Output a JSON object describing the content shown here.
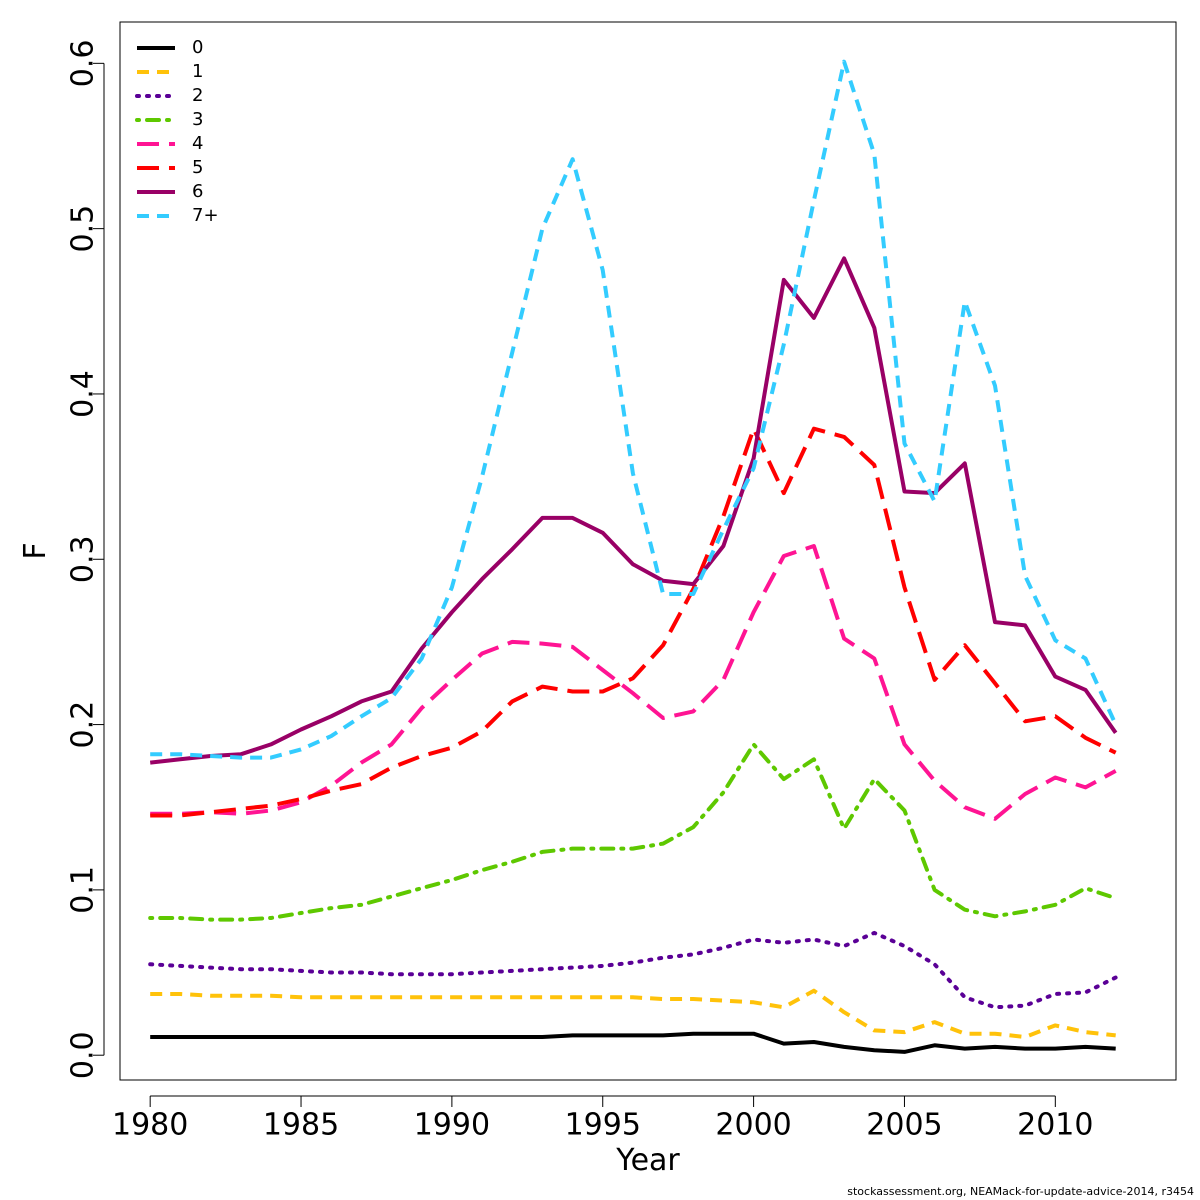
{
  "chart_data": {
    "type": "line",
    "xlabel": "Year",
    "ylabel": "F",
    "xlim": [
      1979,
      2014
    ],
    "ylim": [
      -0.015,
      0.625
    ],
    "xticks": [
      1980,
      1985,
      1990,
      1995,
      2000,
      2005,
      2010
    ],
    "yticks": [
      0.0,
      0.1,
      0.2,
      0.3,
      0.4,
      0.5,
      0.6
    ],
    "ytick_labels": [
      "0.0",
      "0.1",
      "0.2",
      "0.3",
      "0.4",
      "0.5",
      "0.6"
    ],
    "grid": false,
    "legend_position": "top-left",
    "x": [
      1980,
      1981,
      1982,
      1983,
      1984,
      1985,
      1986,
      1987,
      1988,
      1989,
      1990,
      1991,
      1992,
      1993,
      1994,
      1995,
      1996,
      1997,
      1998,
      1999,
      2000,
      2001,
      2002,
      2003,
      2004,
      2005,
      2006,
      2007,
      2008,
      2009,
      2010,
      2011,
      2012
    ],
    "series": [
      {
        "name": "0",
        "color": "#000000",
        "dash": "solid",
        "values": [
          0.011,
          0.011,
          0.011,
          0.011,
          0.011,
          0.011,
          0.011,
          0.011,
          0.011,
          0.011,
          0.011,
          0.011,
          0.011,
          0.011,
          0.012,
          0.012,
          0.012,
          0.012,
          0.013,
          0.013,
          0.013,
          0.007,
          0.008,
          0.005,
          0.003,
          0.002,
          0.006,
          0.004,
          0.005,
          0.004,
          0.004,
          0.005,
          0.004
        ]
      },
      {
        "name": "1",
        "color": "#FFC20A",
        "dash": "dashed",
        "values": [
          0.037,
          0.037,
          0.036,
          0.036,
          0.036,
          0.035,
          0.035,
          0.035,
          0.035,
          0.035,
          0.035,
          0.035,
          0.035,
          0.035,
          0.035,
          0.035,
          0.035,
          0.034,
          0.034,
          0.033,
          0.032,
          0.029,
          0.039,
          0.026,
          0.015,
          0.014,
          0.02,
          0.013,
          0.013,
          0.011,
          0.018,
          0.014,
          0.012
        ]
      },
      {
        "name": "2",
        "color": "#5A0096",
        "dash": "dotted",
        "values": [
          0.055,
          0.054,
          0.053,
          0.052,
          0.052,
          0.051,
          0.05,
          0.05,
          0.049,
          0.049,
          0.049,
          0.05,
          0.051,
          0.052,
          0.053,
          0.054,
          0.056,
          0.059,
          0.061,
          0.065,
          0.07,
          0.068,
          0.07,
          0.066,
          0.074,
          0.066,
          0.055,
          0.035,
          0.029,
          0.03,
          0.037,
          0.038,
          0.047
        ]
      },
      {
        "name": "3",
        "color": "#5EC800",
        "dash": "dotdash",
        "values": [
          0.083,
          0.083,
          0.082,
          0.082,
          0.083,
          0.086,
          0.089,
          0.091,
          0.096,
          0.101,
          0.106,
          0.112,
          0.117,
          0.123,
          0.125,
          0.125,
          0.125,
          0.128,
          0.138,
          0.159,
          0.188,
          0.167,
          0.179,
          0.137,
          0.167,
          0.148,
          0.1,
          0.088,
          0.084,
          0.087,
          0.091,
          0.101,
          0.095
        ]
      },
      {
        "name": "4",
        "color": "#FF1493",
        "dash": "longdash",
        "values": [
          0.146,
          0.146,
          0.147,
          0.146,
          0.148,
          0.153,
          0.163,
          0.177,
          0.188,
          0.21,
          0.227,
          0.243,
          0.25,
          0.249,
          0.247,
          0.233,
          0.219,
          0.204,
          0.208,
          0.227,
          0.268,
          0.302,
          0.308,
          0.252,
          0.24,
          0.188,
          0.166,
          0.15,
          0.143,
          0.158,
          0.168,
          0.162,
          0.172
        ]
      },
      {
        "name": "5",
        "color": "#FF0000",
        "dash": "longdash",
        "values": [
          0.145,
          0.145,
          0.147,
          0.149,
          0.151,
          0.155,
          0.16,
          0.164,
          0.174,
          0.181,
          0.186,
          0.196,
          0.214,
          0.223,
          0.22,
          0.22,
          0.228,
          0.248,
          0.282,
          0.326,
          0.379,
          0.34,
          0.379,
          0.374,
          0.357,
          0.283,
          0.227,
          0.248,
          0.225,
          0.202,
          0.205,
          0.192,
          0.183
        ]
      },
      {
        "name": "6",
        "color": "#990066",
        "dash": "solid",
        "values": [
          0.177,
          0.179,
          0.181,
          0.182,
          0.188,
          0.197,
          0.205,
          0.214,
          0.22,
          0.246,
          0.268,
          0.288,
          0.306,
          0.325,
          0.325,
          0.316,
          0.297,
          0.287,
          0.285,
          0.308,
          0.361,
          0.469,
          0.446,
          0.482,
          0.44,
          0.341,
          0.34,
          0.358,
          0.262,
          0.26,
          0.229,
          0.221,
          0.195
        ]
      },
      {
        "name": "7+",
        "color": "#33CCFF",
        "dash": "dashed",
        "values": [
          0.182,
          0.182,
          0.181,
          0.18,
          0.18,
          0.185,
          0.193,
          0.205,
          0.216,
          0.24,
          0.283,
          0.35,
          0.425,
          0.5,
          0.542,
          0.475,
          0.352,
          0.279,
          0.279,
          0.318,
          0.355,
          0.43,
          0.517,
          0.601,
          0.545,
          0.37,
          0.335,
          0.456,
          0.405,
          0.29,
          0.251,
          0.24,
          0.2
        ]
      }
    ]
  },
  "footer": "stockassessment.org, NEAMack-for-update-advice-2014, r3454"
}
